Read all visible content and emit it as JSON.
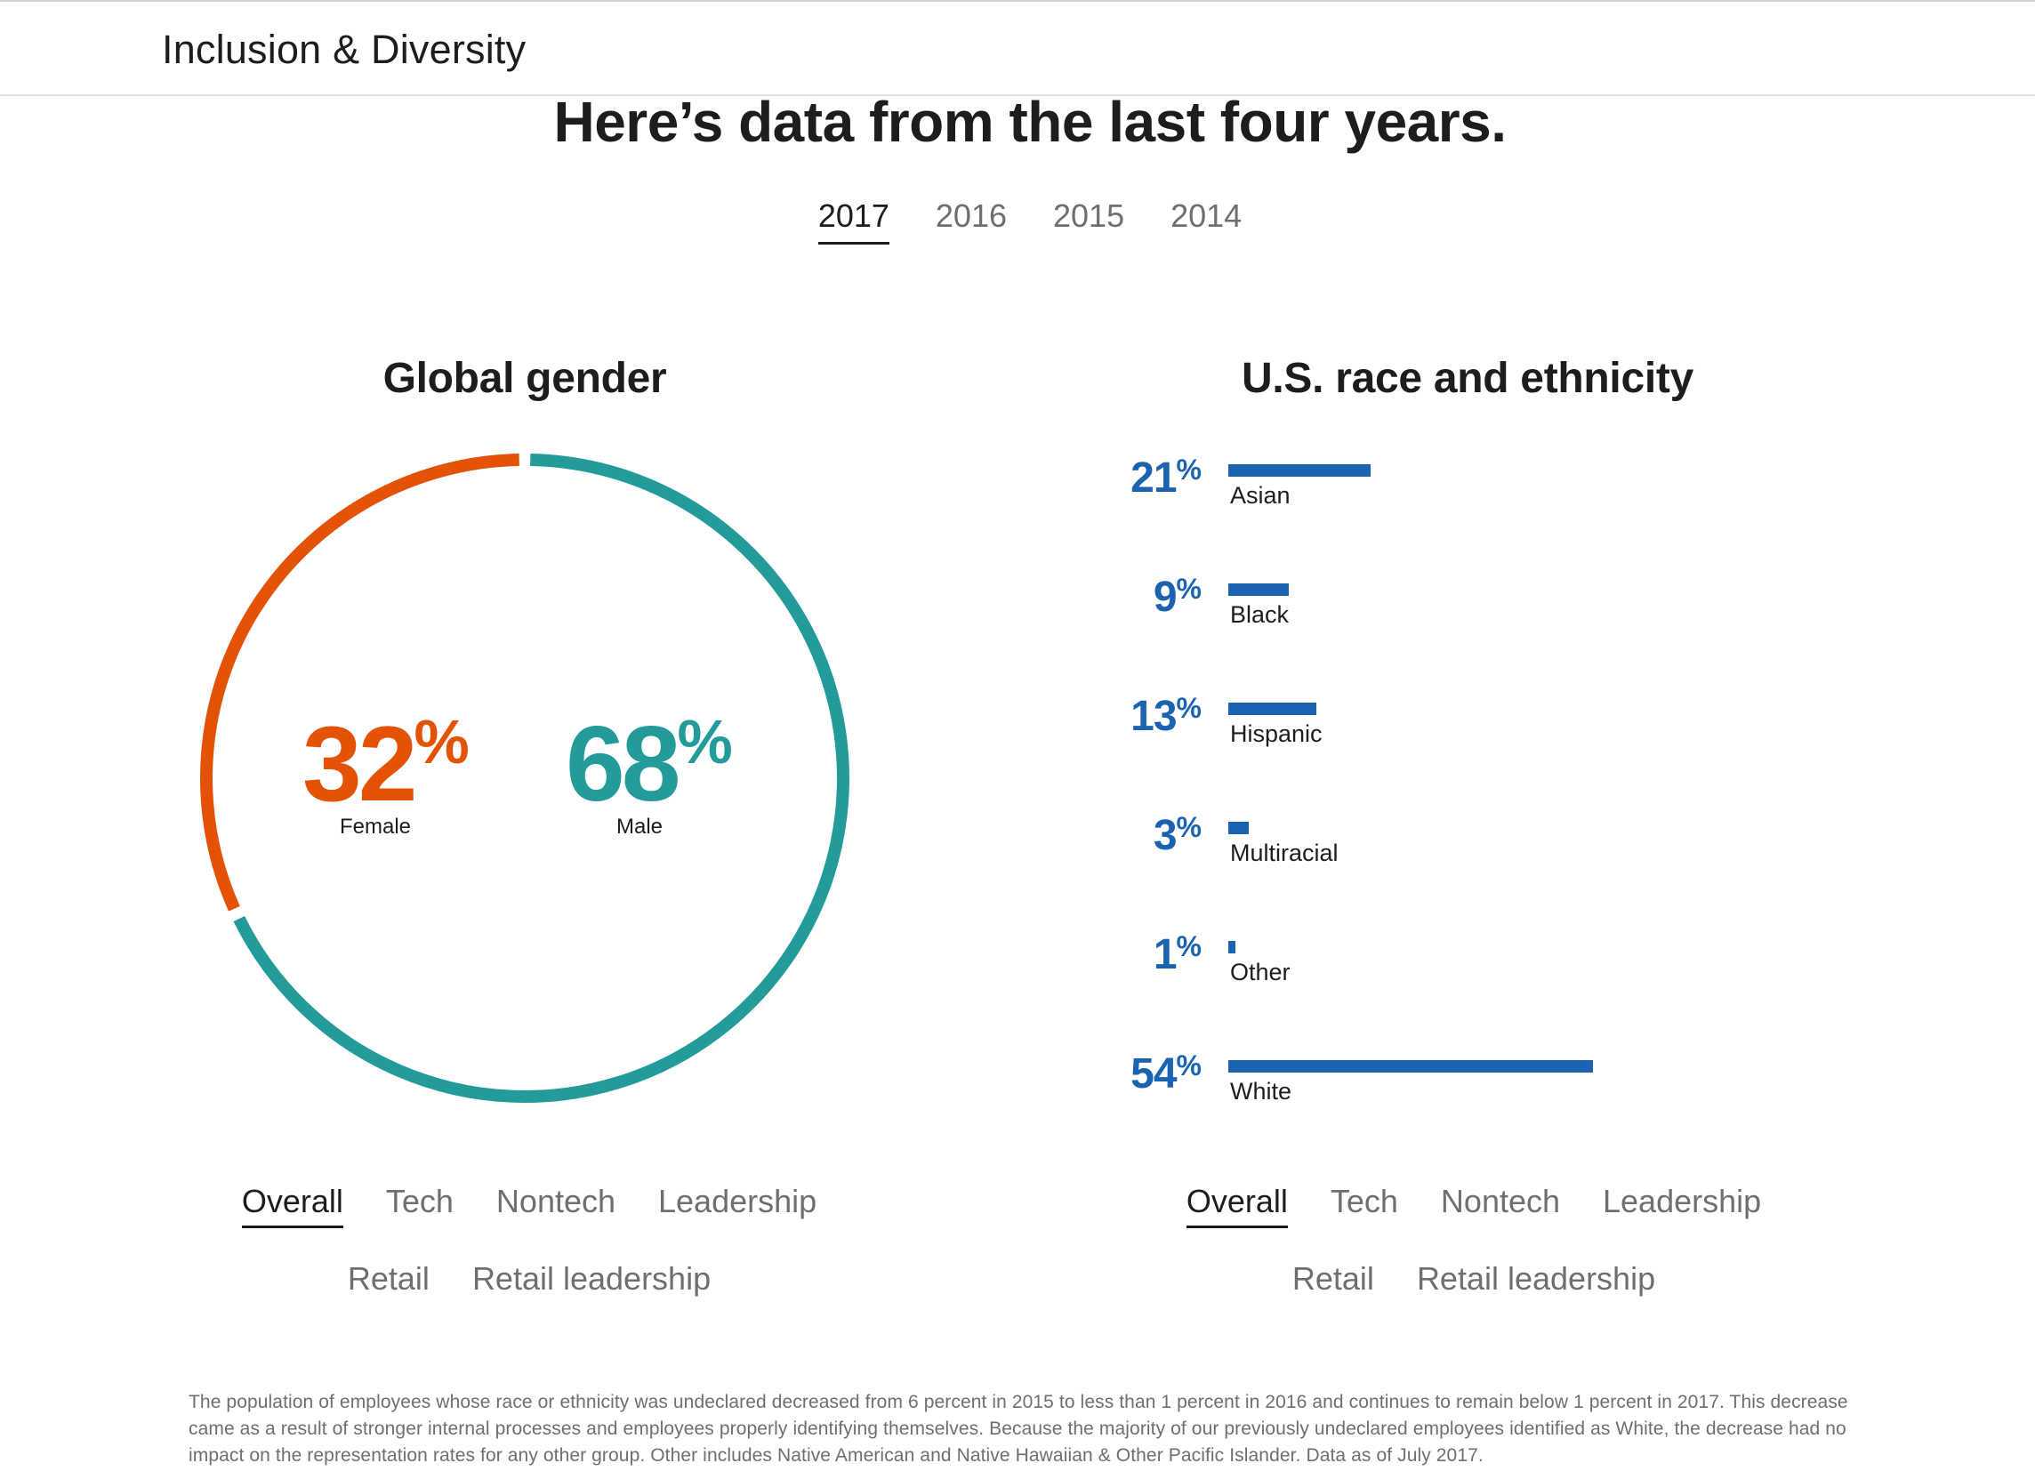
{
  "header": {
    "title": "Inclusion & Diversity"
  },
  "headline": "Here’s data from the last four years.",
  "years": [
    "2017",
    "2016",
    "2015",
    "2014"
  ],
  "selected_year": "2017",
  "gender": {
    "title": "Global gender",
    "female": {
      "value": "32",
      "unit": "%",
      "label": "Female"
    },
    "male": {
      "value": "68",
      "unit": "%",
      "label": "Male"
    },
    "colors": {
      "female": "#e35205",
      "male": "#239b9b"
    }
  },
  "race": {
    "title": "U.S. race and ethnicity",
    "bar_color": "#1a63b0",
    "groups": [
      {
        "value": "21",
        "unit": "%",
        "label": "Asian"
      },
      {
        "value": "9",
        "unit": "%",
        "label": "Black"
      },
      {
        "value": "13",
        "unit": "%",
        "label": "Hispanic"
      },
      {
        "value": "3",
        "unit": "%",
        "label": "Multiracial"
      },
      {
        "value": "1",
        "unit": "%",
        "label": "Other"
      },
      {
        "value": "54",
        "unit": "%",
        "label": "White"
      }
    ]
  },
  "subnav": {
    "row1": [
      "Overall",
      "Tech",
      "Nontech",
      "Leadership"
    ],
    "row2": [
      "Retail",
      "Retail leadership"
    ],
    "selected": "Overall"
  },
  "footnote": "The population of employees whose race or ethnicity was undeclared decreased from 6 percent in 2015 to less than 1 percent in 2016 and continues to remain below 1 percent in 2017. This decrease came as a result of stronger internal processes and employees properly identifying themselves. Because the majority of our previously undeclared employees identified as White, the decrease had no impact on the representation rates for any other group. Other includes Native American and Native Hawaiian & Other Pacific Islander. Data as of July 2017."
}
